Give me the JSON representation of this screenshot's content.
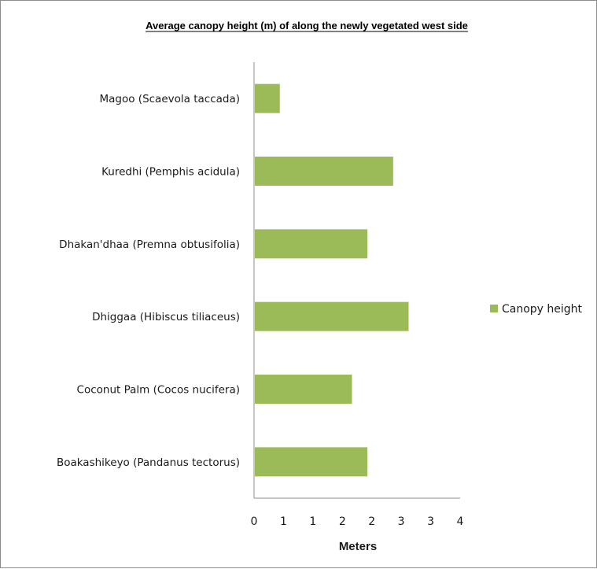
{
  "chart_data": {
    "type": "bar",
    "orientation": "horizontal",
    "title": "Average canopy height (m) of along the newly vegetated west side",
    "categories": [
      "Boakashikeyo (Pandanus tectorus)",
      "Coconut Palm (Cocos nucifera)",
      "Dhiggaa (Hibiscus tiliaceus)",
      "Dhakan'dhaa (Premna obtusifolia)",
      "Kuredhi (Pemphis acidula)",
      "Magoo (Scaevola taccada)"
    ],
    "series": [
      {
        "name": "Canopy height",
        "values": [
          2.2,
          1.9,
          3.0,
          2.2,
          2.7,
          0.5
        ],
        "color": "#9bbb59"
      }
    ],
    "xlabel": "Meters",
    "ylabel": "",
    "xlim": [
      0,
      4
    ],
    "x_ticks": [
      "0",
      "1",
      "1",
      "2",
      "2",
      "3",
      "3",
      "4"
    ],
    "grid": false,
    "legend_position": "right"
  }
}
